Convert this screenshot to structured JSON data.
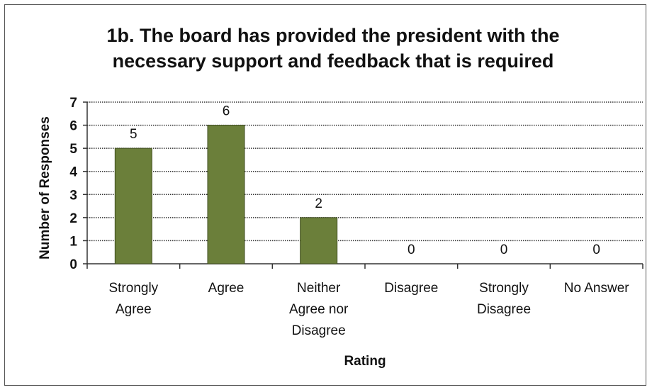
{
  "chart_data": {
    "type": "bar",
    "title": "1b. The board has provided the president with the necessary support and feedback that is required",
    "title_lines": [
      "1b. The board has provided the president with the",
      "necessary support and feedback that is required"
    ],
    "xlabel": "Rating",
    "ylabel": "Number of Responses",
    "categories": [
      "Strongly Agree",
      "Agree",
      "Neither Agree nor Disagree",
      "Disagree",
      "Strongly Disagree",
      "No Answer"
    ],
    "category_lines": [
      [
        "Strongly",
        "Agree"
      ],
      [
        "Agree"
      ],
      [
        "Neither",
        "Agree nor",
        "Disagree"
      ],
      [
        "Disagree"
      ],
      [
        "Strongly",
        "Disagree"
      ],
      [
        "No Answer"
      ]
    ],
    "values": [
      5,
      6,
      2,
      0,
      0,
      0
    ],
    "data_labels": [
      "5",
      "6",
      "2",
      "0",
      "0",
      "0"
    ],
    "ylim": [
      0,
      7
    ],
    "yticks": [
      "0",
      "1",
      "2",
      "3",
      "4",
      "5",
      "6",
      "7"
    ],
    "grid": true,
    "legend": "none",
    "colors": {
      "bar": "#6b7f3a",
      "bar_edge": "#3f4d20",
      "grid": "#333333",
      "axis": "#333333"
    }
  }
}
